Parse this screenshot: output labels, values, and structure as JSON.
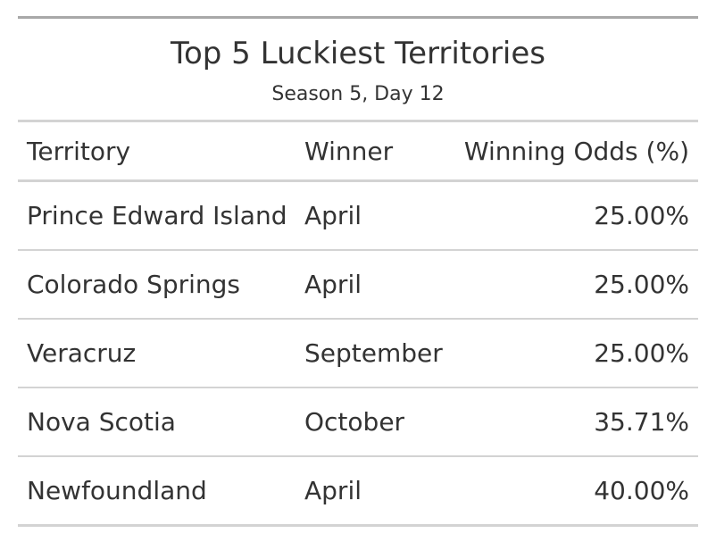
{
  "table": {
    "title": "Top 5 Luckiest Territories",
    "subtitle": "Season 5, Day 12",
    "columns": {
      "territory": "Territory",
      "winner": "Winner",
      "odds": "Winning Odds (%)"
    },
    "rows": [
      {
        "territory": "Prince Edward Island",
        "winner": "April",
        "odds": "25.00%"
      },
      {
        "territory": "Colorado Springs",
        "winner": "April",
        "odds": "25.00%"
      },
      {
        "territory": "Veracruz",
        "winner": "September",
        "odds": "25.00%"
      },
      {
        "territory": "Nova Scotia",
        "winner": "October",
        "odds": "35.71%"
      },
      {
        "territory": "Newfoundland",
        "winner": "April",
        "odds": "40.00%"
      }
    ]
  }
}
